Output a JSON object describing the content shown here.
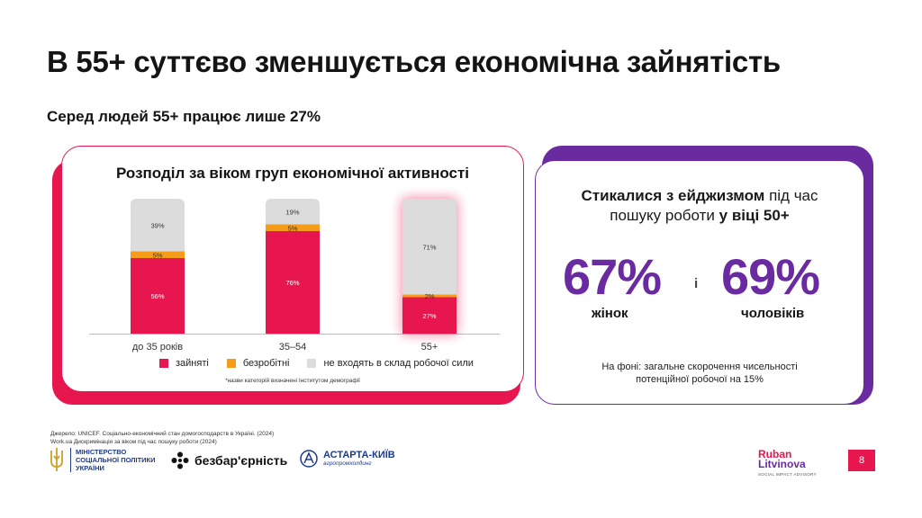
{
  "title": "В 55+ суттєво зменшується економічна зайнятість",
  "subtitle": "Серед людей 55+ працює лише 27%",
  "colors": {
    "accent": "#e8164f",
    "purple": "#6a2aa0",
    "orange": "#f59c1a",
    "grey": "#dcdcdc"
  },
  "chart_data": {
    "type": "bar",
    "title": "Розподіл за віком груп економічної активності",
    "categories": [
      "до 35 років",
      "35–54",
      "55+"
    ],
    "series": [
      {
        "name": "зайняті",
        "values": [
          56,
          76,
          27
        ],
        "labels": [
          "56%",
          "76%",
          "27%"
        ],
        "color": "#e8164f"
      },
      {
        "name": "безробітні",
        "values": [
          5,
          5,
          2
        ],
        "labels": [
          "5%",
          "5%",
          "2%"
        ],
        "color": "#f59c1a"
      },
      {
        "name": "не входять в склад робочої сили",
        "values": [
          39,
          19,
          71
        ],
        "labels": [
          "39%",
          "19%",
          "71%"
        ],
        "color": "#dcdcdc"
      }
    ],
    "stacked": true,
    "highlight_category": "55+",
    "legend_position": "bottom",
    "footnote": "*назви категорій визначені Інститутом демографії"
  },
  "ageism": {
    "line1_bold": "Стикалися з ейджизмом",
    "line1_rest": " під час",
    "line2_rest": "пошуку роботи ",
    "line2_bold": "у віці 50+",
    "women_value": "67%",
    "women_label": "жінок",
    "and": "і",
    "men_value": "69%",
    "men_label": "чоловіків",
    "note_line1": "На фоні: загальне скорочення чисельності",
    "note_line2": "потенційної робочої на 15%"
  },
  "source": {
    "line1": "Джерело: UNICEF. Соціально-економічний стан домогосподарств в Україні. (2024)",
    "line2": "Work.ua Дискримінація за віком під час пошуку роботи (2024)"
  },
  "logos": {
    "ministry": [
      "МІНІСТЕРСТВО",
      "СОЦІАЛЬНОЇ ПОЛІТИКИ",
      "УКРАЇНИ"
    ],
    "bez": "безбар'єрність",
    "astarta_main": "АСТАРТА-КИЇВ",
    "astarta_sub": "агропромхолдинг",
    "rl_line1": "Ruban",
    "rl_line2": "Litvinova",
    "rl_line3": "SOCIAL IMPACT ADVISORY"
  },
  "page_number": "8"
}
